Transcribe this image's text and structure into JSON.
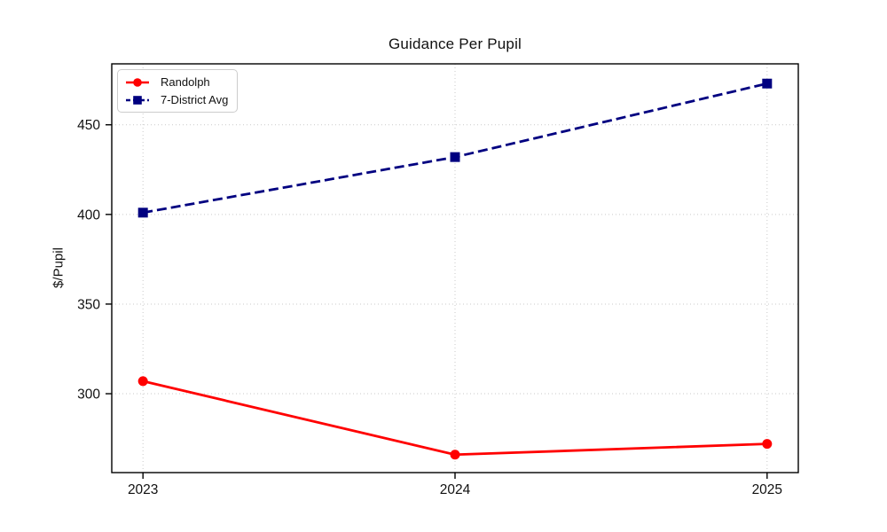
{
  "chart_data": {
    "type": "line",
    "title": "Guidance Per Pupil",
    "xlabel": "",
    "ylabel": "$/Pupil",
    "x": [
      2023,
      2024,
      2025
    ],
    "x_tick_labels": [
      "2023",
      "2024",
      "2025"
    ],
    "y_ticks": [
      300,
      350,
      400,
      450
    ],
    "xlim": [
      2022.9,
      2025.1
    ],
    "ylim": [
      256,
      484
    ],
    "grid": true,
    "grid_style": "dotted",
    "legend_position": "upper-left",
    "colors": {
      "background": "#ffffff",
      "grid": "#c9c9c9",
      "axis": "#000000",
      "text": "#111111"
    },
    "series": [
      {
        "name": "Randolph",
        "color": "#ff0000",
        "marker": "circle",
        "line_style": "solid",
        "values": [
          307,
          266,
          272
        ]
      },
      {
        "name": "7-District Avg",
        "color": "#000080",
        "marker": "square",
        "line_style": "dashed",
        "values": [
          401,
          432,
          473
        ]
      }
    ]
  }
}
